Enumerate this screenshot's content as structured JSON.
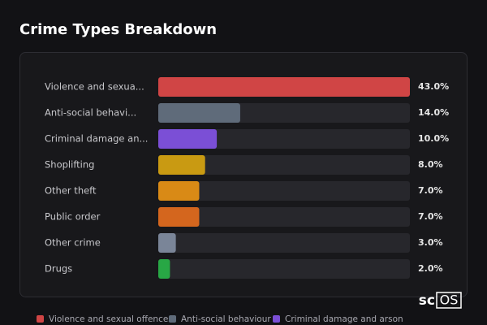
{
  "chart_data": {
    "type": "bar",
    "orientation": "horizontal",
    "title": "Crime Types Breakdown",
    "categories": [
      "Violence and sexua...",
      "Anti-social behavi...",
      "Criminal damage an...",
      "Shoplifting",
      "Other theft",
      "Public order",
      "Other crime",
      "Drugs"
    ],
    "values": [
      43,
      14,
      10,
      8,
      7,
      7,
      3,
      2
    ],
    "value_labels": [
      "43.0%",
      "14.0%",
      "10.0%",
      "8.0%",
      "7.0%",
      "7.0%",
      "3.0%",
      "2.0%"
    ],
    "colors": [
      "#d04545",
      "#5f6b7a",
      "#7b4fd6",
      "#c99a12",
      "#d98a16",
      "#d4661e",
      "#7a8598",
      "#28a745"
    ],
    "xlim": [
      0,
      43
    ],
    "legend": [
      "Violence and sexual offences",
      "Anti-social behaviour",
      "Criminal damage and arson"
    ]
  },
  "logo": {
    "prefix": "sc",
    "box": "OS"
  }
}
